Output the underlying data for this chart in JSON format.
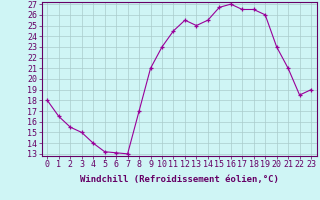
{
  "xlabel": "Windchill (Refroidissement éolien,°C)",
  "x": [
    0,
    1,
    2,
    3,
    4,
    5,
    6,
    7,
    8,
    9,
    10,
    11,
    12,
    13,
    14,
    15,
    16,
    17,
    18,
    19,
    20,
    21,
    22,
    23
  ],
  "y": [
    18,
    16.5,
    15.5,
    15,
    14,
    13.2,
    13.1,
    13.0,
    17,
    21,
    23,
    24.5,
    25.5,
    25.0,
    25.5,
    26.7,
    27.0,
    26.5,
    26.5,
    26.0,
    23,
    21,
    18.5,
    19.0
  ],
  "ylim_min": 13,
  "ylim_max": 27,
  "yticks": [
    13,
    14,
    15,
    16,
    17,
    18,
    19,
    20,
    21,
    22,
    23,
    24,
    25,
    26,
    27
  ],
  "xticks": [
    0,
    1,
    2,
    3,
    4,
    5,
    6,
    7,
    8,
    9,
    10,
    11,
    12,
    13,
    14,
    15,
    16,
    17,
    18,
    19,
    20,
    21,
    22,
    23
  ],
  "line_color": "#990099",
  "marker": "+",
  "bg_color": "#cff5f5",
  "grid_color": "#aacccc",
  "axis_color": "#660066",
  "tick_label_color": "#660066",
  "font_size_axis_label": 6.5,
  "font_size_tick": 6.0
}
